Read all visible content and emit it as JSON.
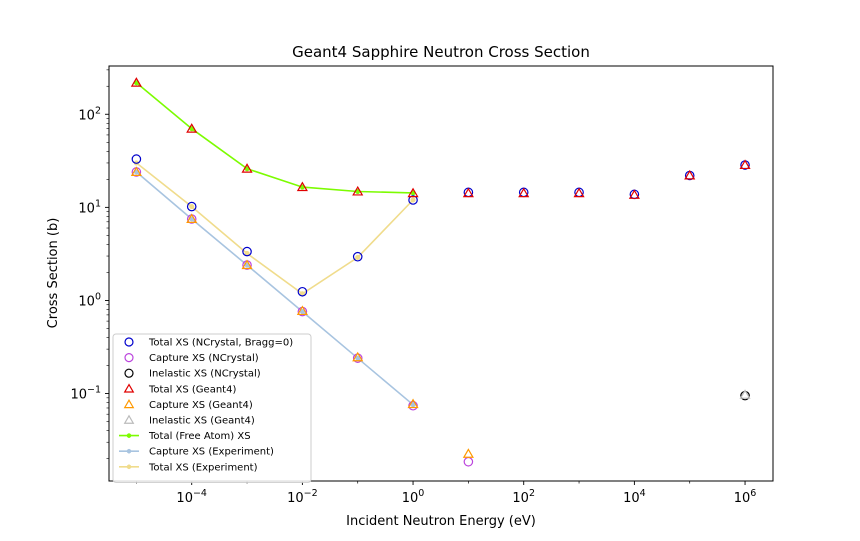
{
  "chart_data": {
    "type": "scatter",
    "title": "Geant4 Sapphire Neutron Cross Section",
    "xlabel": "Incident Neutron Energy (eV)",
    "ylabel": "Cross Section (b)",
    "x_scale": "log",
    "y_scale": "log",
    "xlim": [
      3.2e-06,
      3200000.0
    ],
    "ylim": [
      0.0115,
      330
    ],
    "x_ticks": [
      {
        "value": 0.0001,
        "base": "10",
        "exp": "−4"
      },
      {
        "value": 0.01,
        "base": "10",
        "exp": "−2"
      },
      {
        "value": 1,
        "base": "10",
        "exp": "0"
      },
      {
        "value": 100,
        "base": "10",
        "exp": "2"
      },
      {
        "value": 10000,
        "base": "10",
        "exp": "4"
      },
      {
        "value": 1000000,
        "base": "10",
        "exp": "6"
      }
    ],
    "y_ticks": [
      {
        "value": 0.1,
        "base": "10",
        "exp": "−1"
      },
      {
        "value": 1,
        "base": "10",
        "exp": "0"
      },
      {
        "value": 10,
        "base": "10",
        "exp": "1"
      },
      {
        "value": 100,
        "base": "10",
        "exp": "2"
      }
    ],
    "grid": false,
    "legend_position": "lower-left",
    "series": [
      {
        "name": "Total XS (NCrystal, Bragg=0)",
        "style": "circle-hollow",
        "color": "#0000cc",
        "x": [
          1e-05,
          0.0001,
          0.001,
          0.01,
          0.1,
          1,
          10,
          100,
          1000,
          10000,
          100000,
          1000000
        ],
        "y": [
          33,
          10.2,
          3.35,
          1.24,
          2.95,
          12,
          14.5,
          14.5,
          14.5,
          13.8,
          22,
          28.5
        ]
      },
      {
        "name": "Capture XS (NCrystal)",
        "style": "circle-hollow",
        "color": "#bb44dd",
        "x": [
          1e-05,
          0.0001,
          0.001,
          0.01,
          0.1,
          1,
          10
        ],
        "y": [
          24,
          7.5,
          2.4,
          0.76,
          0.24,
          0.074,
          0.0185
        ]
      },
      {
        "name": "Inelastic XS (NCrystal)",
        "style": "circle-hollow",
        "color": "#000000",
        "x": [
          1000000
        ],
        "y": [
          0.095
        ]
      },
      {
        "name": "Total XS (Geant4)",
        "style": "triangle-hollow",
        "color": "#e00000",
        "x": [
          1e-05,
          0.0001,
          0.001,
          0.01,
          0.1,
          1,
          10,
          100,
          1000,
          10000,
          100000,
          1000000
        ],
        "y": [
          218,
          70,
          26,
          16.5,
          14.8,
          14.2,
          14.2,
          14.2,
          14.2,
          13.6,
          22,
          28.5
        ]
      },
      {
        "name": "Capture XS (Geant4)",
        "style": "triangle-hollow",
        "color": "#ff9900",
        "x": [
          1e-05,
          0.0001,
          0.001,
          0.01,
          0.1,
          1,
          10
        ],
        "y": [
          24,
          7.5,
          2.4,
          0.77,
          0.245,
          0.077,
          0.0225
        ]
      },
      {
        "name": "Inelastic XS (Geant4)",
        "style": "triangle-hollow",
        "color": "#bbbbbb",
        "x": [
          1000000
        ],
        "y": [
          0.097
        ]
      },
      {
        "name": "Total (Free Atom) XS",
        "style": "line-dot",
        "color": "#7cfc00",
        "x": [
          1e-05,
          0.0001,
          0.001,
          0.01,
          0.1,
          1
        ],
        "y": [
          218,
          70,
          26,
          16.5,
          14.8,
          14.3
        ]
      },
      {
        "name": "Capture XS (Experiment)",
        "style": "line-dot",
        "color": "#a8c4e0",
        "x": [
          1e-05,
          0.0001,
          0.001,
          0.01,
          0.1,
          1
        ],
        "y": [
          24,
          7.5,
          2.4,
          0.76,
          0.24,
          0.076
        ]
      },
      {
        "name": "Total XS (Experiment)",
        "style": "line-dot",
        "color": "#f0dc8c",
        "x": [
          1e-05,
          0.0001,
          0.001,
          0.01,
          0.1,
          1
        ],
        "y": [
          30,
          10.2,
          3.2,
          1.18,
          2.9,
          12
        ]
      }
    ]
  }
}
